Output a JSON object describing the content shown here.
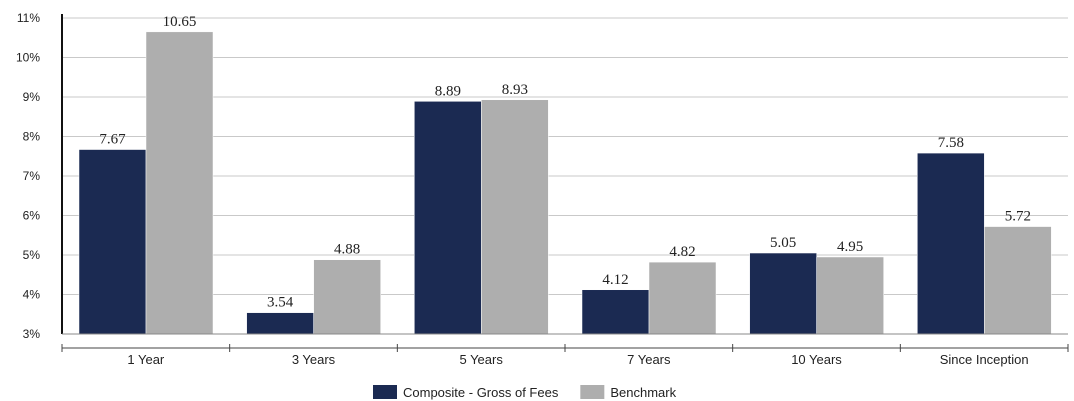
{
  "chart_data": {
    "type": "bar",
    "categories": [
      "1 Year",
      "3 Years",
      "5 Years",
      "7 Years",
      "10 Years",
      "Since Inception"
    ],
    "series": [
      {
        "name": "Composite - Gross of Fees",
        "color": "#1b2a52",
        "values": [
          7.67,
          3.54,
          8.89,
          4.12,
          5.05,
          7.58
        ]
      },
      {
        "name": "Benchmark",
        "color": "#aeaeae",
        "values": [
          10.65,
          4.88,
          8.93,
          4.82,
          4.95,
          5.72
        ]
      }
    ],
    "y_ticks": [
      "3%",
      "4%",
      "5%",
      "6%",
      "7%",
      "8%",
      "9%",
      "10%",
      "11%"
    ],
    "ylim": [
      3,
      11
    ],
    "grid": true,
    "legend_position": "bottom-center",
    "title": "",
    "xlabel": "",
    "ylabel": ""
  }
}
